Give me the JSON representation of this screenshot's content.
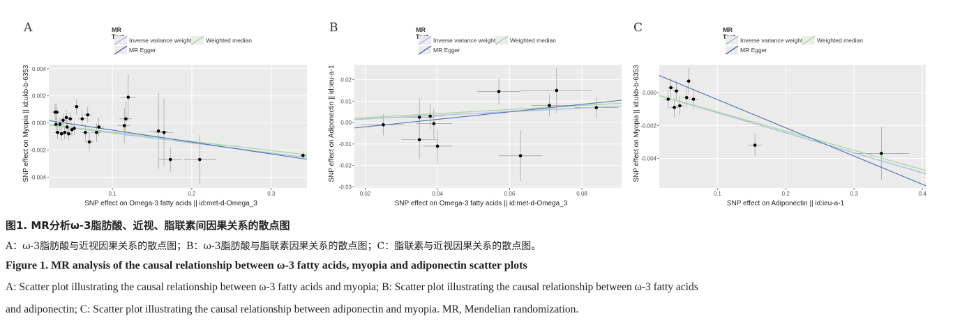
{
  "legend": {
    "title": "MR Test",
    "items": [
      {
        "label": "Inverse variance weighted",
        "color": "#a9bedf"
      },
      {
        "label": "Weighted median",
        "color": "#a8d8a0"
      },
      {
        "label": "MR Egger",
        "color": "#4a6fb0"
      }
    ]
  },
  "captions": {
    "cn_title": "图1.   MR分析ω-3脂肪酸、近视、脂联素间因果关系的散点图",
    "cn_body": "A：ω-3脂肪酸与近视因果关系的散点图；B：ω-3脂肪酸与脂联素因果关系的散点图；C：脂联素与近视因果关系的散点图。",
    "en_title": "Figure 1.    MR analysis of  the causal relationship between ω-3 fatty acids, myopia and adiponectin scatter plots",
    "en_body_line1": "A: Scatter plot illustrating the causal relationship between ω-3 fatty acids and myopia; B: Scatter plot illustrating the causal relationship between ω-3 fatty acids",
    "en_body_line2": "and adiponectin; C: Scatter plot illustrating the causal relationship between adiponectin and myopia. MR, Mendelian randomization."
  },
  "chart_data": [
    {
      "panel": "A",
      "type": "scatter",
      "xlabel": "SNP effect on Omega-3 fatty acids || id:met-d-Omega_3",
      "ylabel": "SNP effect on Myopia || id:ukb-b-6353",
      "xlim": [
        0.02,
        0.345
      ],
      "ylim": [
        -0.0048,
        0.0043
      ],
      "xticks": [
        {
          "v": 0.1,
          "label": "0.1"
        },
        {
          "v": 0.2,
          "label": "0.2"
        },
        {
          "v": 0.3,
          "label": "0.3"
        }
      ],
      "yticks": [
        {
          "v": 0.004,
          "label": "0.004"
        },
        {
          "v": 0.002,
          "label": "0.002"
        },
        {
          "v": 0.0,
          "label": "0.000"
        },
        {
          "v": -0.002,
          "label": "-0.002"
        },
        {
          "v": -0.004,
          "label": "-0.004"
        }
      ],
      "points": [
        {
          "x": 0.028,
          "y": 0.0008,
          "xe": 0.004,
          "ye": 0.0006
        },
        {
          "x": 0.03,
          "y": 0.0008,
          "xe": 0.004,
          "ye": 0.0006
        },
        {
          "x": 0.029,
          "y": -0.0001,
          "xe": 0.004,
          "ye": 0.0005
        },
        {
          "x": 0.031,
          "y": -0.0007,
          "xe": 0.004,
          "ye": 0.0005
        },
        {
          "x": 0.034,
          "y": -0.0001,
          "xe": 0.004,
          "ye": 0.0005
        },
        {
          "x": 0.036,
          "y": -0.0008,
          "xe": 0.004,
          "ye": 0.0005
        },
        {
          "x": 0.038,
          "y": 0.0002,
          "xe": 0.004,
          "ye": 0.0005
        },
        {
          "x": 0.04,
          "y": -0.0007,
          "xe": 0.004,
          "ye": 0.0005
        },
        {
          "x": 0.042,
          "y": 0.0004,
          "xe": 0.004,
          "ye": 0.0005
        },
        {
          "x": 0.043,
          "y": -0.0003,
          "xe": 0.004,
          "ye": 0.0005
        },
        {
          "x": 0.045,
          "y": -0.0008,
          "xe": 0.004,
          "ye": 0.0005
        },
        {
          "x": 0.047,
          "y": 0.0003,
          "xe": 0.004,
          "ye": 0.0005
        },
        {
          "x": 0.049,
          "y": -0.0005,
          "xe": 0.004,
          "ye": 0.0005
        },
        {
          "x": 0.052,
          "y": -0.0004,
          "xe": 0.004,
          "ye": 0.0005
        },
        {
          "x": 0.055,
          "y": 0.0012,
          "xe": 0.004,
          "ye": 0.0006
        },
        {
          "x": 0.062,
          "y": 0.0003,
          "xe": 0.005,
          "ye": 0.0006
        },
        {
          "x": 0.066,
          "y": -0.0007,
          "xe": 0.005,
          "ye": 0.0006
        },
        {
          "x": 0.069,
          "y": 0.0006,
          "xe": 0.005,
          "ye": 0.0006
        },
        {
          "x": 0.071,
          "y": -0.0014,
          "xe": 0.006,
          "ye": 0.0007
        },
        {
          "x": 0.08,
          "y": -0.0007,
          "xe": 0.006,
          "ye": 0.0007
        },
        {
          "x": 0.083,
          "y": -0.0003,
          "xe": 0.006,
          "ye": 0.0007
        },
        {
          "x": 0.115,
          "y": -0.0002,
          "xe": 0.008,
          "ye": 0.0013
        },
        {
          "x": 0.117,
          "y": 0.0003,
          "xe": 0.008,
          "ye": 0.0013
        },
        {
          "x": 0.12,
          "y": 0.0019,
          "xe": 0.01,
          "ye": 0.0017
        },
        {
          "x": 0.158,
          "y": -0.0006,
          "xe": 0.012,
          "ye": 0.0028
        },
        {
          "x": 0.165,
          "y": -0.0007,
          "xe": 0.012,
          "ye": 0.0025
        },
        {
          "x": 0.173,
          "y": -0.0027,
          "xe": 0.014,
          "ye": 0.0009
        },
        {
          "x": 0.21,
          "y": -0.0027,
          "xe": 0.02,
          "ye": 0.0018
        },
        {
          "x": 0.34,
          "y": -0.0024,
          "xe": 0.004,
          "ye": 0.0003
        }
      ],
      "lines": [
        {
          "method": "Inverse variance weighted",
          "intercept": 0.0,
          "slope": -0.0074
        },
        {
          "method": "Weighted median",
          "intercept": 0.0,
          "slope": -0.0068
        },
        {
          "method": "MR Egger",
          "intercept": 0.00035,
          "slope": -0.0088
        }
      ]
    },
    {
      "panel": "B",
      "type": "scatter",
      "xlabel": "SNP effect on Omega-3 fatty acids || id:met-d-Omega_3",
      "ylabel": "SNP effect on Adiponectin || id:ieu-a-1",
      "xlim": [
        0.017,
        0.091
      ],
      "ylim": [
        -0.0305,
        0.027
      ],
      "xticks": [
        {
          "v": 0.02,
          "label": "0.02"
        },
        {
          "v": 0.04,
          "label": "0.04"
        },
        {
          "v": 0.06,
          "label": "0.06"
        },
        {
          "v": 0.08,
          "label": "0.08"
        }
      ],
      "yticks": [
        {
          "v": 0.02,
          "label": "0.02"
        },
        {
          "v": 0.01,
          "label": "0.01"
        },
        {
          "v": 0.0,
          "label": "0.00"
        },
        {
          "v": -0.01,
          "label": "-0.01"
        },
        {
          "v": -0.02,
          "label": "-0.02"
        },
        {
          "v": -0.03,
          "label": "-0.03"
        }
      ],
      "points": [
        {
          "x": 0.025,
          "y": -0.001,
          "xe": 0.006,
          "ye": 0.005
        },
        {
          "x": 0.035,
          "y": 0.0025,
          "xe": 0.004,
          "ye": 0.009
        },
        {
          "x": 0.035,
          "y": -0.008,
          "xe": 0.005,
          "ye": 0.009
        },
        {
          "x": 0.038,
          "y": 0.003,
          "xe": 0.004,
          "ye": 0.006
        },
        {
          "x": 0.039,
          "y": -0.0005,
          "xe": 0.005,
          "ye": 0.007
        },
        {
          "x": 0.04,
          "y": -0.011,
          "xe": 0.004,
          "ye": 0.008
        },
        {
          "x": 0.057,
          "y": 0.0145,
          "xe": 0.006,
          "ye": 0.006
        },
        {
          "x": 0.063,
          "y": -0.0155,
          "xe": 0.006,
          "ye": 0.012
        },
        {
          "x": 0.071,
          "y": 0.008,
          "xe": 0.005,
          "ye": 0.005
        },
        {
          "x": 0.073,
          "y": 0.015,
          "xe": 0.01,
          "ye": 0.0105
        },
        {
          "x": 0.084,
          "y": 0.007,
          "xe": 0.006,
          "ye": 0.005
        }
      ],
      "lines": [
        {
          "method": "Inverse variance weighted",
          "intercept": 0.0,
          "slope": 0.085
        },
        {
          "method": "Weighted median",
          "intercept": 0.0004,
          "slope": 0.095
        },
        {
          "method": "MR Egger",
          "intercept": -0.0055,
          "slope": 0.175
        }
      ]
    },
    {
      "panel": "C",
      "type": "scatter",
      "xlabel": "SNP effect on Adiponectin || id:ieu-a-1",
      "ylabel": "SNP effect on Myopia || id:ukb-b-6353",
      "xlim": [
        0.015,
        0.405
      ],
      "ylim": [
        -0.0058,
        0.0017
      ],
      "xticks": [
        {
          "v": 0.1,
          "label": "0.1"
        },
        {
          "v": 0.2,
          "label": "0.2"
        },
        {
          "v": 0.3,
          "label": "0.3"
        },
        {
          "v": 0.4,
          "label": "0.4"
        }
      ],
      "yticks": [
        {
          "v": 0.0,
          "label": "0.000"
        },
        {
          "v": -0.002,
          "label": "-0.002"
        },
        {
          "v": -0.004,
          "label": "-0.004"
        }
      ],
      "points": [
        {
          "x": 0.028,
          "y": -0.0004,
          "xe": 0.006,
          "ye": 0.0006
        },
        {
          "x": 0.032,
          "y": 0.0003,
          "xe": 0.005,
          "ye": 0.0006
        },
        {
          "x": 0.037,
          "y": -0.0009,
          "xe": 0.006,
          "ye": 0.0006
        },
        {
          "x": 0.04,
          "y": 0.0001,
          "xe": 0.005,
          "ye": 0.0006
        },
        {
          "x": 0.045,
          "y": -0.0008,
          "xe": 0.006,
          "ye": 0.0006
        },
        {
          "x": 0.055,
          "y": -0.0003,
          "xe": 0.006,
          "ye": 0.0006
        },
        {
          "x": 0.058,
          "y": 0.0007,
          "xe": 0.005,
          "ye": 0.0008
        },
        {
          "x": 0.065,
          "y": -0.0004,
          "xe": 0.008,
          "ye": 0.0006
        },
        {
          "x": 0.155,
          "y": -0.0032,
          "xe": 0.01,
          "ye": 0.0007
        },
        {
          "x": 0.34,
          "y": -0.0037,
          "xe": 0.04,
          "ye": 0.0016
        }
      ],
      "lines": [
        {
          "method": "Inverse variance weighted",
          "intercept": 0.0,
          "slope": -0.0122
        },
        {
          "method": "Weighted median",
          "intercept": 0.0,
          "slope": -0.0117
        },
        {
          "method": "MR Egger",
          "intercept": 0.0013,
          "slope": -0.0172
        }
      ]
    }
  ]
}
